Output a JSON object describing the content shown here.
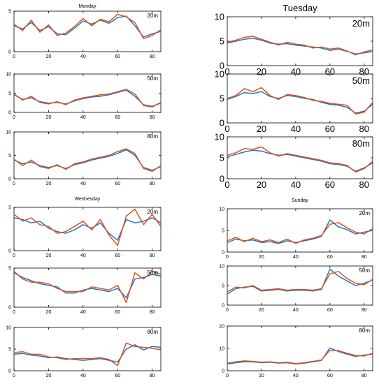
{
  "colors": {
    "series_blue": "#1f77c4",
    "series_orange": "#e0521c",
    "axis": "#000000",
    "background": "#ffffff"
  },
  "chart_data": [
    {
      "type": "line",
      "title": "Monday",
      "annotation": "20m",
      "xlim": [
        0,
        85
      ],
      "ylim": [
        0,
        5
      ],
      "xticks": [
        0,
        20,
        40,
        60,
        80
      ],
      "yticks": [
        0,
        5
      ],
      "x": [
        0,
        5,
        10,
        15,
        20,
        25,
        30,
        35,
        40,
        45,
        50,
        55,
        60,
        65,
        70,
        75,
        80,
        85
      ],
      "series": [
        {
          "values": [
            3.2,
            2.8,
            3.6,
            2.6,
            3.1,
            2.2,
            2.1,
            2.9,
            3.8,
            3.4,
            3.9,
            3.5,
            4.2,
            4.4,
            3.2,
            1.8,
            2.2,
            2.5
          ]
        },
        {
          "values": [
            3.4,
            2.6,
            3.9,
            2.4,
            3.3,
            2.0,
            2.3,
            3.1,
            4.1,
            3.2,
            4.0,
            3.7,
            4.6,
            4.3,
            3.6,
            1.6,
            2.0,
            2.7
          ]
        }
      ]
    },
    {
      "type": "line",
      "title": "Tuesday",
      "annotation": "20m",
      "xlim": [
        0,
        85
      ],
      "ylim": [
        0,
        10
      ],
      "xticks": [
        0,
        20,
        40,
        60,
        80
      ],
      "yticks": [
        0,
        5,
        10
      ],
      "x": [
        0,
        5,
        10,
        15,
        20,
        25,
        30,
        35,
        40,
        45,
        50,
        55,
        60,
        65,
        70,
        75,
        80,
        85
      ],
      "series": [
        {
          "values": [
            4.6,
            5.0,
            5.4,
            5.6,
            5.2,
            4.6,
            4.4,
            4.5,
            4.2,
            4.0,
            3.8,
            3.6,
            3.1,
            3.4,
            2.9,
            2.4,
            2.6,
            2.9
          ]
        },
        {
          "values": [
            4.8,
            5.2,
            5.8,
            6.0,
            5.4,
            4.8,
            4.2,
            4.8,
            4.4,
            4.2,
            3.6,
            3.8,
            3.4,
            3.6,
            3.0,
            2.2,
            2.8,
            3.2
          ]
        }
      ]
    },
    {
      "type": "line",
      "title": "",
      "annotation": "50m",
      "xlim": [
        0,
        85
      ],
      "ylim": [
        0,
        10
      ],
      "xticks": [
        0,
        20,
        40,
        60,
        80
      ],
      "yticks": [
        0,
        5,
        10
      ],
      "x": [
        0,
        5,
        10,
        15,
        20,
        25,
        30,
        35,
        40,
        45,
        50,
        55,
        60,
        65,
        70,
        75,
        80,
        85
      ],
      "series": [
        {
          "values": [
            4.6,
            3.4,
            3.8,
            2.8,
            2.4,
            2.6,
            2.2,
            3.0,
            3.6,
            4.0,
            4.2,
            4.6,
            5.2,
            5.8,
            4.2,
            2.0,
            1.6,
            2.4
          ]
        },
        {
          "values": [
            4.8,
            3.2,
            4.2,
            2.6,
            2.2,
            2.8,
            2.0,
            3.2,
            3.8,
            4.2,
            4.6,
            4.8,
            5.4,
            6.0,
            4.8,
            1.8,
            1.4,
            2.6
          ]
        }
      ]
    },
    {
      "type": "line",
      "title": "",
      "annotation": "50m",
      "xlim": [
        0,
        85
      ],
      "ylim": [
        0,
        10
      ],
      "xticks": [
        0,
        20,
        40,
        60,
        80
      ],
      "yticks": [
        0,
        5,
        10
      ],
      "x": [
        0,
        5,
        10,
        15,
        20,
        25,
        30,
        35,
        40,
        45,
        50,
        55,
        60,
        65,
        70,
        75,
        80,
        85
      ],
      "series": [
        {
          "values": [
            4.8,
            5.4,
            6.2,
            6.0,
            6.4,
            5.4,
            5.0,
            5.6,
            5.4,
            5.0,
            4.8,
            4.2,
            3.8,
            3.6,
            3.2,
            2.0,
            2.4,
            3.8
          ]
        },
        {
          "values": [
            5.0,
            5.6,
            7.0,
            6.4,
            7.2,
            5.6,
            4.8,
            5.8,
            5.6,
            5.2,
            4.6,
            4.4,
            4.0,
            3.8,
            3.6,
            1.8,
            2.2,
            4.2
          ]
        }
      ]
    },
    {
      "type": "line",
      "title": "",
      "annotation": "80m",
      "xlim": [
        0,
        85
      ],
      "ylim": [
        0,
        10
      ],
      "xticks": [
        0,
        20,
        40,
        60,
        80
      ],
      "yticks": [
        0,
        5,
        10
      ],
      "x": [
        0,
        5,
        10,
        15,
        20,
        25,
        30,
        35,
        40,
        45,
        50,
        55,
        60,
        65,
        70,
        75,
        80,
        85
      ],
      "series": [
        {
          "values": [
            4.0,
            3.2,
            3.6,
            2.8,
            2.4,
            2.8,
            2.2,
            3.0,
            3.4,
            4.0,
            4.4,
            4.8,
            5.4,
            6.2,
            5.0,
            2.4,
            1.8,
            2.6
          ]
        },
        {
          "values": [
            4.2,
            2.8,
            4.0,
            2.6,
            2.2,
            3.0,
            2.0,
            3.2,
            3.6,
            4.2,
            4.6,
            5.0,
            5.8,
            6.4,
            5.4,
            2.2,
            1.6,
            2.8
          ]
        }
      ]
    },
    {
      "type": "line",
      "title": "",
      "annotation": "80m",
      "xlim": [
        0,
        85
      ],
      "ylim": [
        0,
        10
      ],
      "xticks": [
        0,
        20,
        40,
        60,
        80
      ],
      "yticks": [
        0,
        5,
        10
      ],
      "x": [
        0,
        5,
        10,
        15,
        20,
        25,
        30,
        35,
        40,
        45,
        50,
        55,
        60,
        65,
        70,
        75,
        80,
        85
      ],
      "series": [
        {
          "values": [
            5.2,
            5.8,
            6.4,
            6.8,
            6.6,
            6.0,
            5.6,
            5.8,
            5.4,
            5.0,
            4.6,
            4.2,
            3.6,
            3.4,
            3.0,
            1.8,
            2.6,
            3.8
          ]
        },
        {
          "values": [
            5.6,
            6.2,
            7.2,
            7.0,
            7.6,
            6.2,
            5.4,
            6.0,
            5.6,
            5.2,
            4.8,
            4.4,
            3.8,
            3.6,
            3.2,
            1.6,
            2.4,
            4.2
          ]
        }
      ]
    },
    {
      "type": "line",
      "title": "Wednesday",
      "annotation": "20m",
      "xlim": [
        0,
        85
      ],
      "ylim": [
        0,
        5
      ],
      "xticks": [
        0,
        20,
        40,
        60,
        80
      ],
      "yticks": [
        0,
        5
      ],
      "x": [
        0,
        5,
        10,
        15,
        20,
        25,
        30,
        35,
        40,
        45,
        50,
        55,
        60,
        65,
        70,
        75,
        80,
        85
      ],
      "series": [
        {
          "values": [
            3.8,
            3.6,
            3.2,
            3.4,
            2.6,
            2.2,
            2.0,
            2.4,
            3.0,
            2.6,
            3.2,
            2.0,
            1.2,
            3.6,
            3.2,
            3.4,
            3.8,
            3.2
          ]
        },
        {
          "values": [
            4.2,
            3.4,
            3.8,
            3.0,
            2.8,
            2.0,
            2.2,
            2.8,
            3.4,
            2.4,
            3.6,
            1.8,
            0.6,
            4.0,
            4.8,
            3.0,
            4.2,
            2.8
          ]
        }
      ]
    },
    {
      "type": "line",
      "title": "Sunday",
      "annotation": "20m",
      "xlim": [
        0,
        85
      ],
      "ylim": [
        0,
        10
      ],
      "xticks": [
        0,
        20,
        40,
        60,
        80
      ],
      "yticks": [
        0,
        5,
        10
      ],
      "x": [
        0,
        5,
        10,
        15,
        20,
        25,
        30,
        35,
        40,
        45,
        50,
        55,
        60,
        65,
        70,
        75,
        80,
        85
      ],
      "series": [
        {
          "values": [
            2.2,
            3.0,
            2.6,
            2.8,
            2.2,
            2.4,
            2.0,
            2.6,
            2.2,
            2.6,
            3.0,
            3.6,
            7.4,
            5.8,
            5.2,
            4.2,
            4.6,
            5.0
          ]
        },
        {
          "values": [
            2.6,
            3.4,
            2.4,
            3.2,
            2.4,
            2.8,
            2.2,
            3.0,
            2.0,
            2.8,
            3.2,
            3.8,
            6.4,
            6.8,
            5.6,
            4.6,
            4.2,
            5.4
          ]
        }
      ]
    },
    {
      "type": "line",
      "title": "",
      "annotation": "50m",
      "xlim": [
        0,
        85
      ],
      "ylim": [
        0,
        5
      ],
      "xticks": [
        0,
        20,
        40,
        60,
        80
      ],
      "yticks": [
        0,
        5
      ],
      "x": [
        0,
        5,
        10,
        15,
        20,
        25,
        30,
        35,
        40,
        45,
        50,
        55,
        60,
        65,
        70,
        75,
        80,
        85
      ],
      "series": [
        {
          "values": [
            4.4,
            3.8,
            3.4,
            3.0,
            2.8,
            2.6,
            1.8,
            1.8,
            2.2,
            2.4,
            2.2,
            2.0,
            2.4,
            1.2,
            3.6,
            3.8,
            4.2,
            4.0
          ]
        },
        {
          "values": [
            4.6,
            3.6,
            3.2,
            3.2,
            3.0,
            2.4,
            2.0,
            2.0,
            2.0,
            2.6,
            2.4,
            2.2,
            2.8,
            0.6,
            4.4,
            3.6,
            4.6,
            4.2
          ]
        }
      ]
    },
    {
      "type": "line",
      "title": "",
      "annotation": "50m",
      "xlim": [
        0,
        85
      ],
      "ylim": [
        0,
        10
      ],
      "xticks": [
        0,
        20,
        40,
        60,
        80
      ],
      "yticks": [
        0,
        5,
        10
      ],
      "x": [
        0,
        5,
        10,
        15,
        20,
        25,
        30,
        35,
        40,
        45,
        50,
        55,
        60,
        65,
        70,
        75,
        80,
        85
      ],
      "series": [
        {
          "values": [
            2.8,
            4.2,
            4.6,
            4.8,
            3.6,
            3.8,
            4.0,
            3.6,
            3.8,
            3.8,
            3.6,
            4.0,
            9.2,
            7.4,
            6.2,
            5.0,
            5.6,
            6.4
          ]
        },
        {
          "values": [
            3.4,
            4.6,
            4.4,
            5.0,
            3.8,
            4.0,
            4.2,
            3.8,
            4.0,
            4.0,
            3.8,
            4.2,
            8.0,
            8.6,
            6.8,
            5.6,
            5.2,
            6.6
          ]
        }
      ]
    },
    {
      "type": "line",
      "title": "",
      "annotation": "80m",
      "xlim": [
        0,
        85
      ],
      "ylim": [
        0,
        10
      ],
      "xticks": [
        0,
        20,
        40,
        60,
        80
      ],
      "yticks": [
        0,
        5,
        10
      ],
      "x": [
        0,
        5,
        10,
        15,
        20,
        25,
        30,
        35,
        40,
        45,
        50,
        55,
        60,
        65,
        70,
        75,
        80,
        85
      ],
      "series": [
        {
          "values": [
            3.8,
            4.0,
            3.6,
            3.4,
            3.0,
            3.2,
            2.8,
            2.6,
            2.4,
            2.6,
            2.8,
            2.4,
            2.0,
            5.0,
            6.0,
            4.8,
            5.6,
            5.4
          ]
        },
        {
          "values": [
            4.2,
            4.4,
            3.8,
            3.8,
            3.2,
            3.0,
            2.6,
            2.8,
            2.8,
            2.8,
            3.0,
            2.6,
            1.2,
            6.4,
            5.6,
            5.4,
            5.2,
            4.8
          ]
        }
      ]
    },
    {
      "type": "line",
      "title": "",
      "annotation": "80m",
      "xlim": [
        0,
        85
      ],
      "ylim": [
        0,
        20
      ],
      "xticks": [
        0,
        20,
        40,
        60,
        80
      ],
      "yticks": [
        0,
        10,
        20
      ],
      "x": [
        0,
        5,
        10,
        15,
        20,
        25,
        30,
        35,
        40,
        45,
        50,
        55,
        60,
        65,
        70,
        75,
        80,
        85
      ],
      "series": [
        {
          "values": [
            3.0,
            3.6,
            4.0,
            4.0,
            3.6,
            3.8,
            3.4,
            3.6,
            3.0,
            3.4,
            4.0,
            4.6,
            10.2,
            8.6,
            7.4,
            6.4,
            7.0,
            7.4
          ]
        },
        {
          "values": [
            3.4,
            4.0,
            4.4,
            4.2,
            3.8,
            4.0,
            3.6,
            3.8,
            3.2,
            3.6,
            4.2,
            4.8,
            9.2,
            9.0,
            7.8,
            6.8,
            6.6,
            7.8
          ]
        }
      ]
    }
  ]
}
